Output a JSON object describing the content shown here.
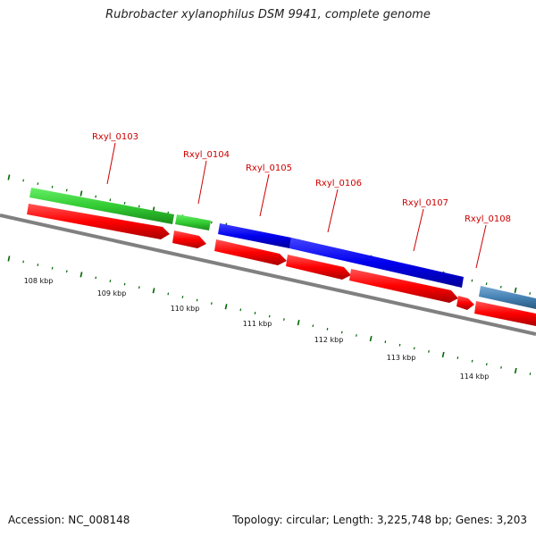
{
  "title": "Rubrobacter xylanophilus DSM 9941, complete genome",
  "footer": {
    "accession": "Accession: NC_008148",
    "stats": "Topology: circular; Length: 3,225,748 bp; Genes: 3,203"
  },
  "genes": [
    {
      "label": "Rxyl_0103"
    },
    {
      "label": "Rxyl_0104"
    },
    {
      "label": "Rxyl_0105"
    },
    {
      "label": "Rxyl_0106"
    },
    {
      "label": "Rxyl_0107"
    },
    {
      "label": "Rxyl_0108"
    }
  ],
  "scale_labels": [
    "108 kbp",
    "109 kbp",
    "110 kbp",
    "111 kbp",
    "112 kbp",
    "113 kbp",
    "114 kbp"
  ],
  "colors": {
    "cds": "#ff0000",
    "feature_green": "#33cc33",
    "feature_blue": "#0000ee",
    "feature_steelblue": "#4682b4",
    "backbone": "#808080",
    "tick": "#006600",
    "label": "#cc0000"
  }
}
